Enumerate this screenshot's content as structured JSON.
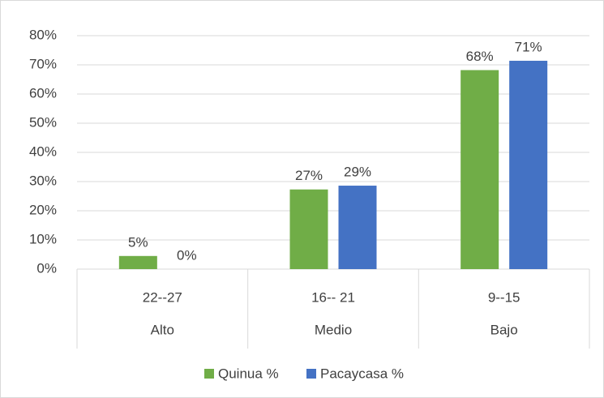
{
  "chart_data": {
    "type": "bar",
    "categories": [
      "22--27",
      "16-- 21",
      "9--15"
    ],
    "category_groups": [
      "Alto",
      "Medio",
      "Bajo"
    ],
    "series": [
      {
        "name": "Quinua %",
        "color": "#70ad47",
        "values": [
          4.5,
          27.3,
          68.2
        ],
        "value_labels": [
          "5%",
          "27%",
          "68%"
        ]
      },
      {
        "name": "Pacaycasa %",
        "color": "#4472c4",
        "values": [
          0,
          28.6,
          71.4
        ],
        "value_labels": [
          "0%",
          "29%",
          "71%"
        ]
      }
    ],
    "ylim": [
      0,
      80
    ],
    "yticks": [
      {
        "value": 0,
        "label": "0%"
      },
      {
        "value": 10,
        "label": "10%"
      },
      {
        "value": 20,
        "label": "20%"
      },
      {
        "value": 30,
        "label": "30%"
      },
      {
        "value": 40,
        "label": "40%"
      },
      {
        "value": 50,
        "label": "50%"
      },
      {
        "value": 60,
        "label": "60%"
      },
      {
        "value": 70,
        "label": "70%"
      },
      {
        "value": 80,
        "label": "80%"
      }
    ],
    "grid": true,
    "legend": "bottom"
  }
}
